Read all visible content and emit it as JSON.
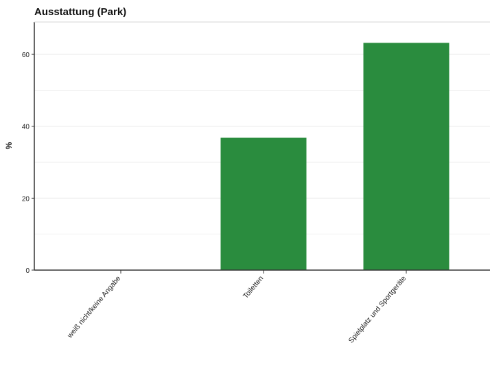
{
  "chart_data": {
    "type": "bar",
    "title": "Ausstattung (Park)",
    "xlabel": "",
    "ylabel": "%",
    "categories": [
      "weiß nicht/keine Angabe",
      "Toiletten",
      "Spielplatz und Sportgeräte"
    ],
    "values": [
      0,
      36.8,
      63.2
    ],
    "ylim": [
      0,
      69
    ],
    "yticks": [
      0,
      20,
      40,
      60
    ],
    "grid": true,
    "legend": "none",
    "bar_color": "#2a8c3e",
    "grid_color": "#eeeeee",
    "axis_color": "#333333"
  }
}
